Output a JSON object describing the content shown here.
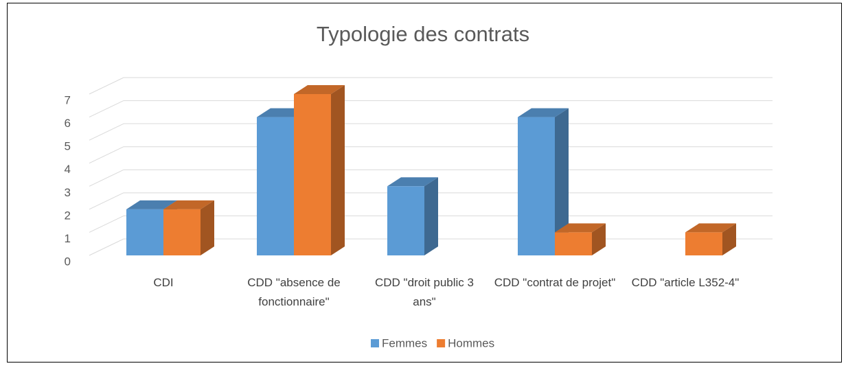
{
  "chart_data": {
    "type": "bar3d",
    "title": "Typologie des contrats",
    "categories": [
      "CDI",
      "CDD \"absence de fonctionnaire\"",
      "CDD \"droit public 3 ans\"",
      "CDD \"contrat de projet\"",
      "CDD \"article L352-4\""
    ],
    "series": [
      {
        "name": "Femmes",
        "color": "#5b9bd5",
        "values": [
          2,
          6,
          3,
          6,
          0
        ]
      },
      {
        "name": "Hommes",
        "color": "#ed7d31",
        "values": [
          2,
          7,
          0,
          1,
          1
        ]
      }
    ],
    "ylim": [
      0,
      7
    ],
    "yticks": [
      0,
      1,
      2,
      3,
      4,
      5,
      6,
      7
    ],
    "grid": true,
    "legend": "bottom"
  }
}
